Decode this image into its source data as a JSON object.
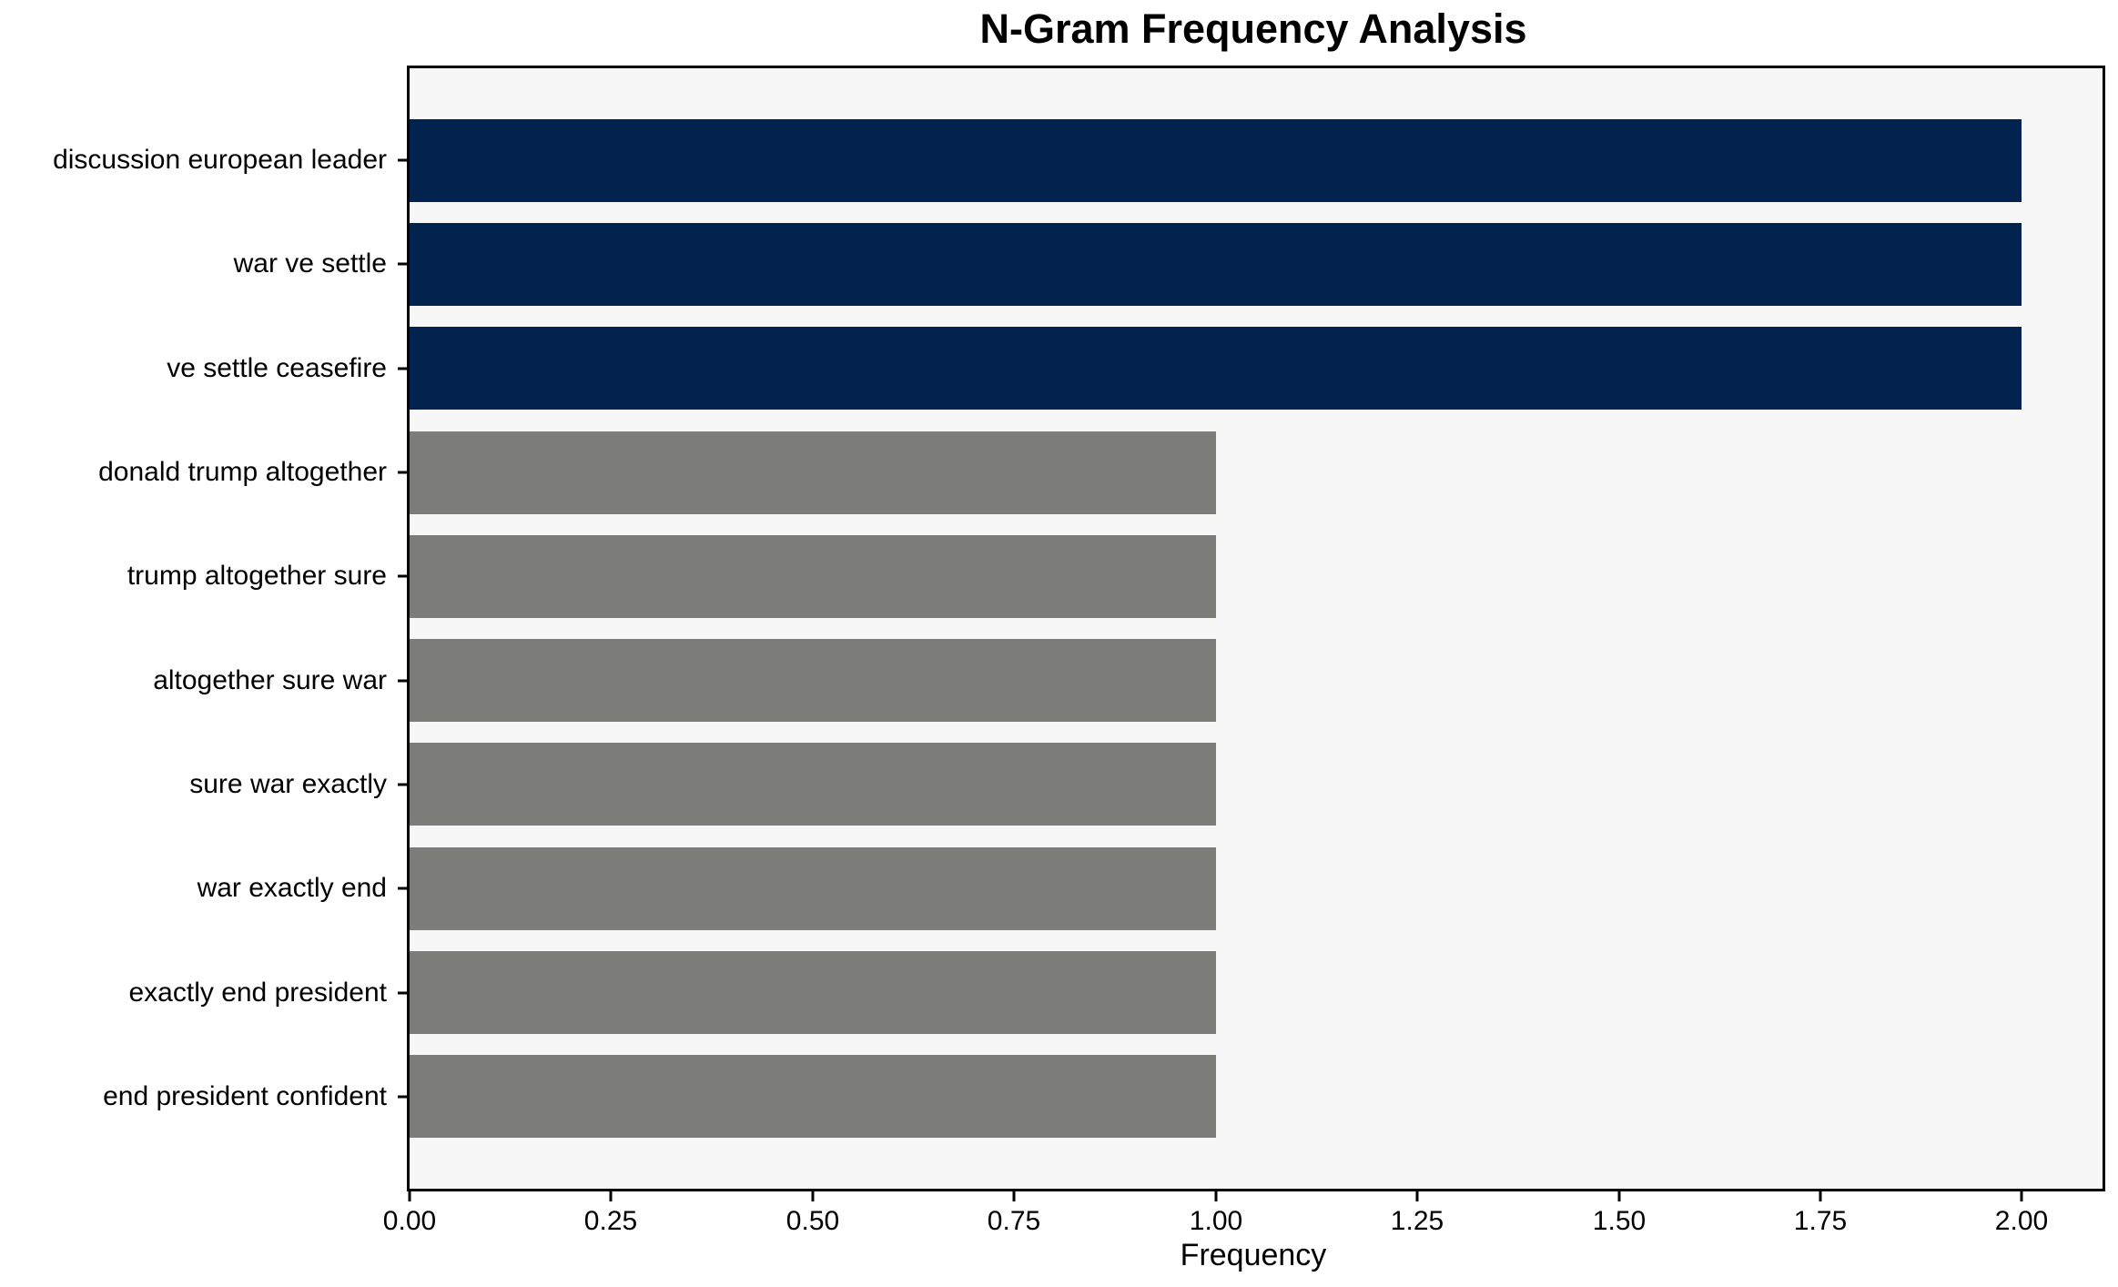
{
  "chart_data": {
    "type": "bar",
    "orientation": "horizontal",
    "title": "N-Gram Frequency Analysis",
    "xlabel": "Frequency",
    "ylabel": "",
    "categories": [
      "discussion european leader",
      "war ve settle",
      "ve settle ceasefire",
      "donald trump altogether",
      "trump altogether sure",
      "altogether sure war",
      "sure war exactly",
      "war exactly end",
      "exactly end president",
      "end president confident"
    ],
    "values": [
      2.0,
      2.0,
      2.0,
      1.0,
      1.0,
      1.0,
      1.0,
      1.0,
      1.0,
      1.0
    ],
    "bar_colors": [
      "#02234e",
      "#02234e",
      "#02234e",
      "#7c7c79",
      "#7c7c79",
      "#7c7c79",
      "#7c7c79",
      "#7c7c79",
      "#7c7c79",
      "#7c7c79"
    ],
    "xlim": [
      0,
      2.1
    ],
    "xticks": [
      0.0,
      0.25,
      0.5,
      0.75,
      1.0,
      1.25,
      1.5,
      1.75,
      2.0
    ],
    "xtick_labels": [
      "0.00",
      "0.25",
      "0.50",
      "0.75",
      "1.00",
      "1.25",
      "1.50",
      "1.75",
      "2.00"
    ],
    "grid": false,
    "legend": null,
    "colors": {
      "highlight_bar": "#02234e",
      "default_bar": "#7c7c79",
      "plot_background": "#f7f7f7",
      "figure_background": "#ffffff",
      "spine": "#000000",
      "text": "#000000"
    }
  }
}
